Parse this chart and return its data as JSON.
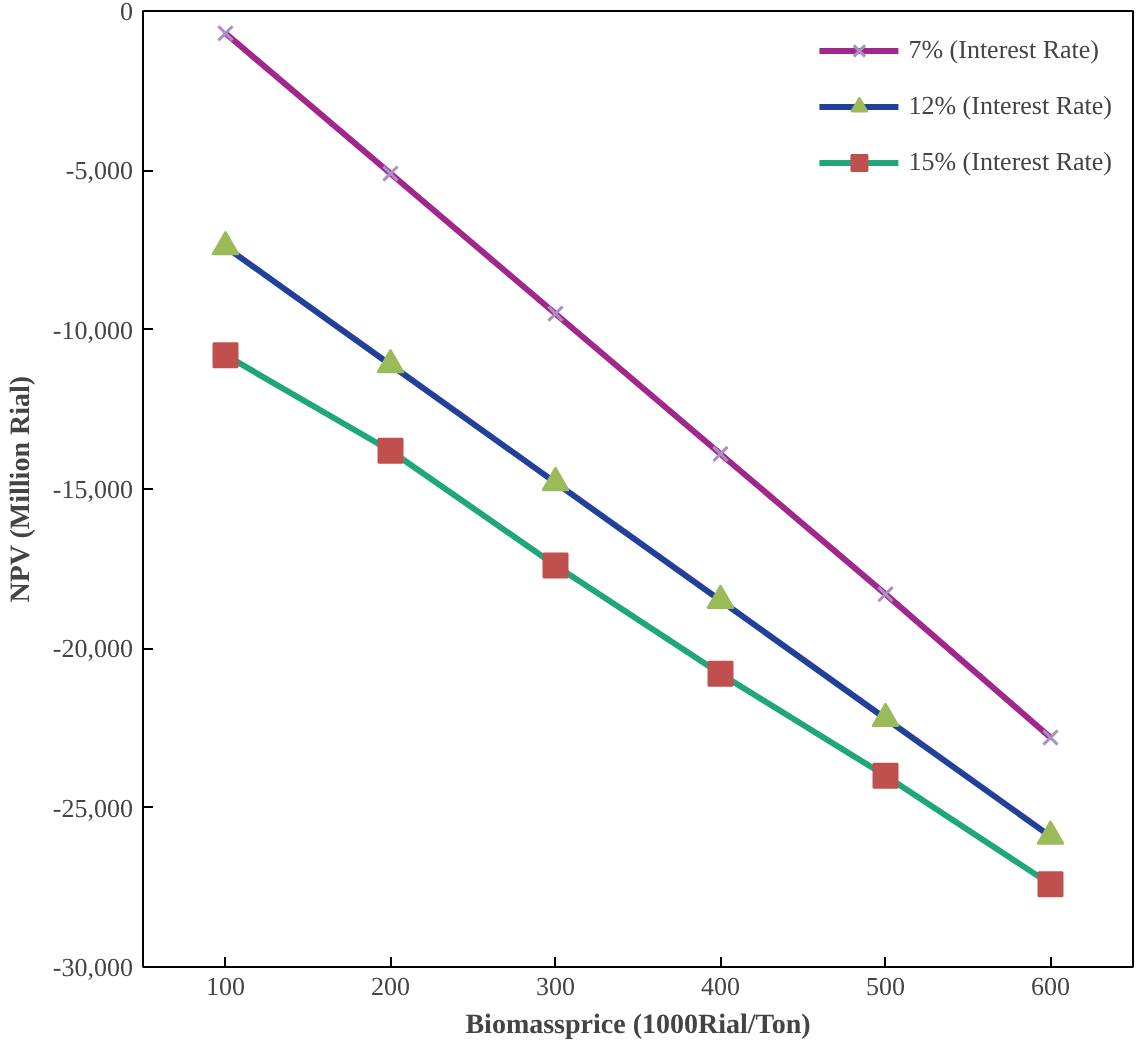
{
  "chart_data": {
    "type": "line",
    "xlabel": "Biomassprice (1000Rial/Ton)",
    "ylabel": "NPV (Million Rial)",
    "x": [
      100,
      200,
      300,
      400,
      500,
      600
    ],
    "xlim": [
      50,
      650
    ],
    "xticks": [
      100,
      200,
      300,
      400,
      500,
      600
    ],
    "ylim": [
      -30000,
      0
    ],
    "yticks": [
      {
        "value": -30000,
        "label": "-30,000"
      },
      {
        "value": -25000,
        "label": "-25,000"
      },
      {
        "value": -20000,
        "label": "-20,000"
      },
      {
        "value": -15000,
        "label": "-15,000"
      },
      {
        "value": -10000,
        "label": "-10,000"
      },
      {
        "value": -5000,
        "label": "-5,000"
      },
      {
        "value": 0,
        "label": "0"
      }
    ],
    "grid": false,
    "legend": "top right",
    "line_style": "solid",
    "series": [
      {
        "name": "7% (Interest Rate)",
        "color": "#a0288c",
        "marker": "cross",
        "colors": [
          "#a98fc6",
          "#a98fc6",
          "#a98fc6",
          "#a98fc6",
          "#a98fc6",
          "#a98fc6"
        ],
        "values": [
          -700,
          -5100,
          -9500,
          -13900,
          -18300,
          -22800
        ]
      },
      {
        "name": "12% (Interest Rate)",
        "color": "#21409a",
        "marker": "triangle",
        "colors": [
          "#9bbb59",
          "#9bbb59",
          "#9bbb59",
          "#9bbb59",
          "#9bbb59",
          "#9bbb59"
        ],
        "values": [
          -7400,
          -11100,
          -14800,
          -18500,
          -22200,
          -25900
        ]
      },
      {
        "name": "15% (Interest Rate)",
        "color": "#1fa67a",
        "marker": "square",
        "colors": [
          "#c0504d",
          "#c0504d",
          "#c0504d",
          "#c0504d",
          "#c0504d",
          "#c0504d"
        ],
        "values": [
          -10800,
          -13800,
          -17400,
          -20800,
          -24000,
          -27400
        ]
      }
    ]
  }
}
